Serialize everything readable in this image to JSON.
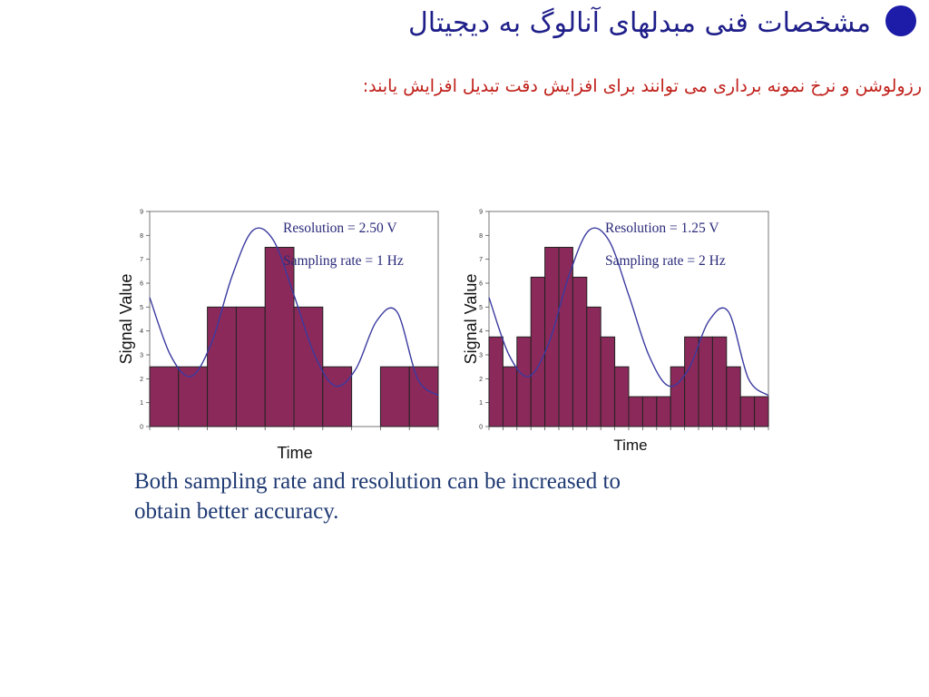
{
  "title": "مشخصات فنی مبدلهای آنالوگ به دیجیتال",
  "subtitle": "رزولوشن و نرخ نمونه برداری می توانند برای افزایش دقت تبدیل افزایش یابند:",
  "colors": {
    "title": "#1f1f8a",
    "subtitle": "#c0201a",
    "bar": "#8b2a5a",
    "curve": "#3a3aa0",
    "caption": "#1f3a73"
  },
  "chart_data": [
    {
      "type": "bar",
      "xlabel": "Time",
      "ylabel": "Signal Value",
      "ylim": [
        0,
        9
      ],
      "yticks": [
        "0",
        "1",
        "2",
        "3",
        "4",
        "5",
        "6",
        "7",
        "8",
        "9"
      ],
      "annotations": [
        "Resolution = 2.50 V",
        "Sampling rate = 1 Hz"
      ],
      "bars": [
        2.5,
        2.5,
        5,
        5,
        7.5,
        5,
        2.5,
        0,
        2.5,
        2.5
      ],
      "curve": [
        5.4,
        3.0,
        2.1,
        3.5,
        6.3,
        8.2,
        7.8,
        5.5,
        3.0,
        1.7,
        2.4,
        4.4,
        4.8,
        2.0,
        1.3
      ]
    },
    {
      "type": "bar",
      "xlabel": "Time",
      "ylabel": "Signal Value",
      "ylim": [
        0,
        9
      ],
      "yticks": [
        "0",
        "1",
        "2",
        "3",
        "4",
        "5",
        "6",
        "7",
        "8",
        "9"
      ],
      "annotations": [
        "Resolution = 1.25 V",
        "Sampling rate = 2 Hz"
      ],
      "bars": [
        3.75,
        2.5,
        3.75,
        6.25,
        7.5,
        7.5,
        6.25,
        5,
        3.75,
        2.5,
        1.25,
        1.25,
        1.25,
        2.5,
        3.75,
        3.75,
        3.75,
        2.5,
        1.25,
        1.25
      ],
      "curve": [
        5.4,
        3.0,
        2.1,
        3.5,
        6.3,
        8.2,
        7.8,
        5.5,
        3.0,
        1.7,
        2.4,
        4.4,
        4.8,
        2.0,
        1.3
      ]
    }
  ],
  "caption": {
    "line1": "Both sampling rate and resolution can be increased to",
    "line2": "obtain better accuracy."
  }
}
